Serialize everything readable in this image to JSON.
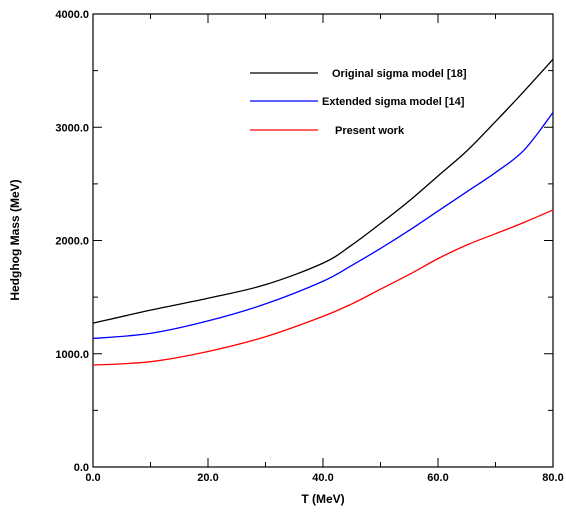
{
  "chart_data": {
    "type": "line",
    "title": "",
    "xlabel": "T (MeV)",
    "ylabel": "Hedghog Mass (MeV)",
    "xlim": [
      0,
      80
    ],
    "ylim": [
      0,
      4000
    ],
    "x_ticks": [
      0,
      20,
      40,
      60,
      80
    ],
    "x_tick_labels": [
      "0.0",
      "20.0",
      "40.0",
      "60.0",
      "80.0"
    ],
    "y_ticks": [
      0,
      1000,
      2000,
      3000,
      4000
    ],
    "y_tick_labels": [
      "0.0",
      "1000.0",
      "2000.0",
      "3000.0",
      "4000.0"
    ],
    "grid": false,
    "legend_position": "top-right",
    "series": [
      {
        "name": "Original sigma model [18]",
        "color": "#000000",
        "x": [
          0,
          10,
          20,
          30,
          40,
          45,
          50,
          55,
          60,
          65,
          70,
          75,
          80
        ],
        "y": [
          1270,
          1385,
          1490,
          1610,
          1800,
          1960,
          2150,
          2350,
          2570,
          2790,
          3050,
          3320,
          3600
        ]
      },
      {
        "name": "Extended sigma model [14]",
        "color": "#0000ff",
        "x": [
          0,
          10,
          20,
          30,
          40,
          45,
          50,
          55,
          60,
          65,
          70,
          75,
          80
        ],
        "y": [
          1135,
          1180,
          1290,
          1440,
          1640,
          1780,
          1930,
          2090,
          2260,
          2430,
          2600,
          2800,
          3130
        ]
      },
      {
        "name": "Present work",
        "color": "#ff0000",
        "x": [
          0,
          10,
          20,
          30,
          40,
          45,
          50,
          55,
          60,
          65,
          70,
          75,
          80
        ],
        "y": [
          900,
          930,
          1020,
          1150,
          1330,
          1440,
          1570,
          1700,
          1840,
          1960,
          2060,
          2160,
          2270
        ]
      }
    ]
  }
}
